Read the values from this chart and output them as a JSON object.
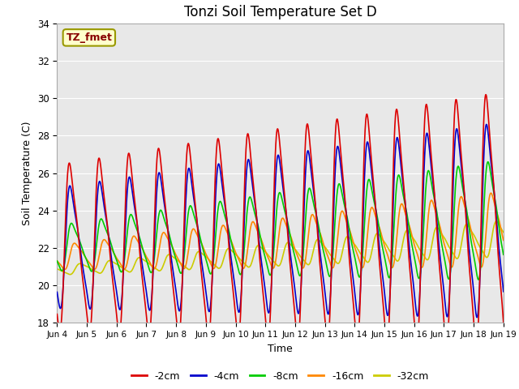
{
  "title": "Tonzi Soil Temperature Set D",
  "xlabel": "Time",
  "ylabel": "Soil Temperature (C)",
  "ylim": [
    18,
    34
  ],
  "xlim": [
    0,
    15
  ],
  "xtick_labels": [
    "Jun 4",
    "Jun 5",
    "Jun 6",
    "Jun 7",
    "Jun 8",
    "Jun 9",
    "Jun 10",
    "Jun 11",
    "Jun 12",
    "Jun 13",
    "Jun 14",
    "Jun 15",
    "Jun 16",
    "Jun 17",
    "Jun 18",
    "Jun 19"
  ],
  "legend_entries": [
    "-2cm",
    "-4cm",
    "-8cm",
    "-16cm",
    "-32cm"
  ],
  "line_colors": [
    "#dd0000",
    "#0000cc",
    "#00cc00",
    "#ff8800",
    "#cccc00"
  ],
  "annotation_text": "TZ_fmet",
  "annotation_color": "#880000",
  "annotation_bg": "#ffffcc",
  "annotation_border": "#999900",
  "plot_bg": "#e8e8e8",
  "title_fontsize": 12,
  "axis_fontsize": 9,
  "legend_fontsize": 9
}
